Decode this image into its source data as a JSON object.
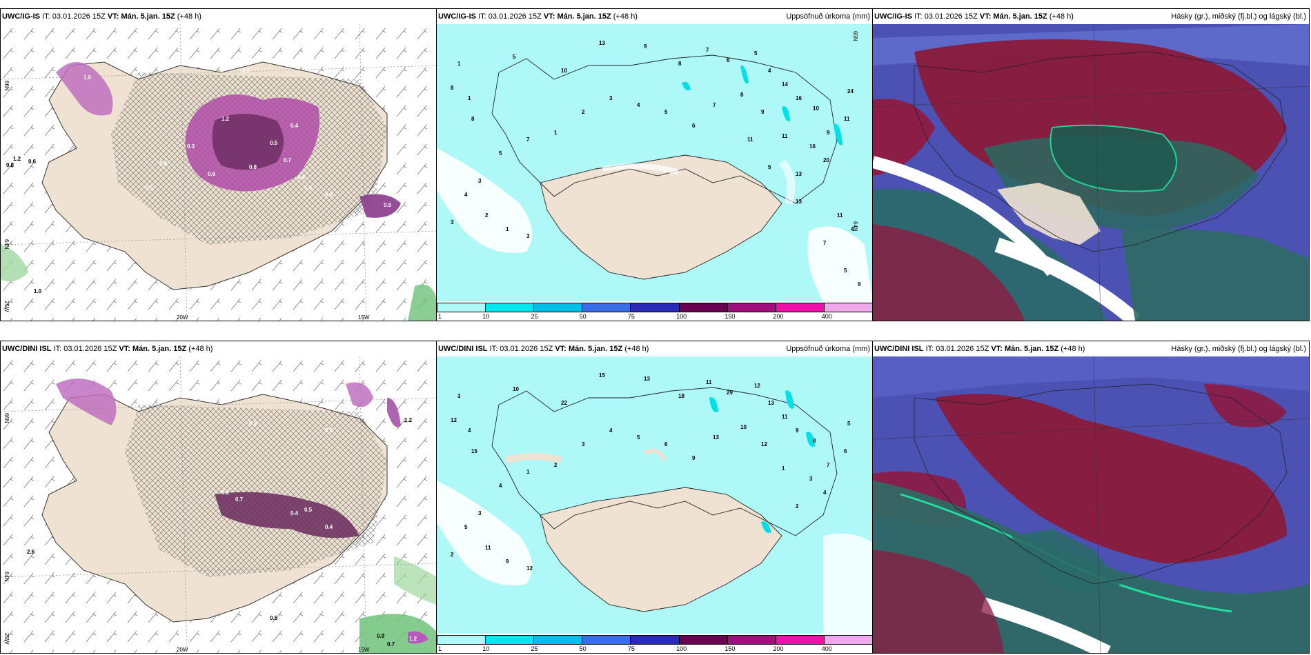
{
  "rows": [
    {
      "model": "UWC/IG-IS",
      "it_label": "IT:",
      "it_value": "03.01.2026 15Z",
      "vt_label": "VT:",
      "vt_value": "Mán. 5.jan. 15Z",
      "lead": "(+48 h)",
      "precip_title": "Uppsöfnuð úrkoma (mm)",
      "cloud_title": "Hásky (gr.), miðský (fj.bl.) og lágský (bl.)",
      "lat_labels": [
        "66N",
        "64N",
        "25W"
      ],
      "lon_labels": [
        "20W",
        "15W"
      ],
      "lat_labels_mid": [
        "65N",
        "64N"
      ],
      "precip_values": [
        "1",
        "1",
        "8",
        "8",
        "5",
        "10",
        "13",
        "9",
        "8",
        "7",
        "6",
        "5",
        "4",
        "14",
        "16",
        "10",
        "9",
        "11",
        "24",
        "20",
        "16",
        "13",
        "11",
        "9",
        "8",
        "7",
        "6",
        "5",
        "4",
        "3",
        "2",
        "1",
        "7",
        "5",
        "3",
        "4",
        "3",
        "2",
        "1",
        "3",
        "7",
        "5",
        "9",
        "4",
        "11",
        "13",
        "5",
        "11"
      ],
      "detail_values": [
        "0.3",
        "1.2",
        "0.4",
        "0.5",
        "0.8",
        "0.7",
        "1.0",
        "0.9",
        "0.6",
        "0.3",
        "0.4",
        "0.5",
        "0.6",
        "1.0",
        "0.5"
      ],
      "coast_values": [
        "0.8",
        "1.2",
        "0.6",
        "1.0"
      ]
    },
    {
      "model": "UWC/DINI ISL",
      "it_label": "IT:",
      "it_value": "03.01.2026 15Z",
      "vt_label": "VT:",
      "vt_value": "Mán. 5.jan. 15Z",
      "lead": "(+48 h)",
      "precip_title": "Uppsöfnuð úrkoma (mm)",
      "cloud_title": "Hásky (gr.), miðský (fj.bl.) og lágský (bl.)",
      "lat_labels": [
        "66N",
        "64N",
        "25W"
      ],
      "lon_labels": [
        "20W",
        "15W"
      ],
      "lat_labels_mid": [
        "65N",
        "64N"
      ],
      "precip_values": [
        "3",
        "4",
        "12",
        "15",
        "10",
        "22",
        "15",
        "13",
        "18",
        "11",
        "29",
        "12",
        "13",
        "11",
        "9",
        "8",
        "7",
        "6",
        "5",
        "4",
        "3",
        "2",
        "1",
        "12",
        "10",
        "13",
        "9",
        "6",
        "5",
        "4",
        "3",
        "2",
        "1",
        "4",
        "3",
        "5",
        "2",
        "11",
        "9",
        "12"
      ],
      "detail_values": [
        "0.2",
        "0.7",
        "0.4",
        "0.5",
        "0.6",
        "1.2",
        "0.7",
        "0.4",
        "0.3"
      ],
      "coast_values": [
        "2.6",
        "0.5",
        "0.9",
        "0.7",
        "1.2"
      ]
    }
  ],
  "colorbar": {
    "ticks": [
      "1",
      "10",
      "25",
      "50",
      "75",
      "100",
      "150",
      "200",
      "400",
      ""
    ],
    "colors": [
      "#aef8f8",
      "#00e8ee",
      "#00c0e8",
      "#3a6ee8",
      "#2a2ab8",
      "#6a0050",
      "#a0107c",
      "#ee10a8",
      "#f0a8ec"
    ]
  }
}
